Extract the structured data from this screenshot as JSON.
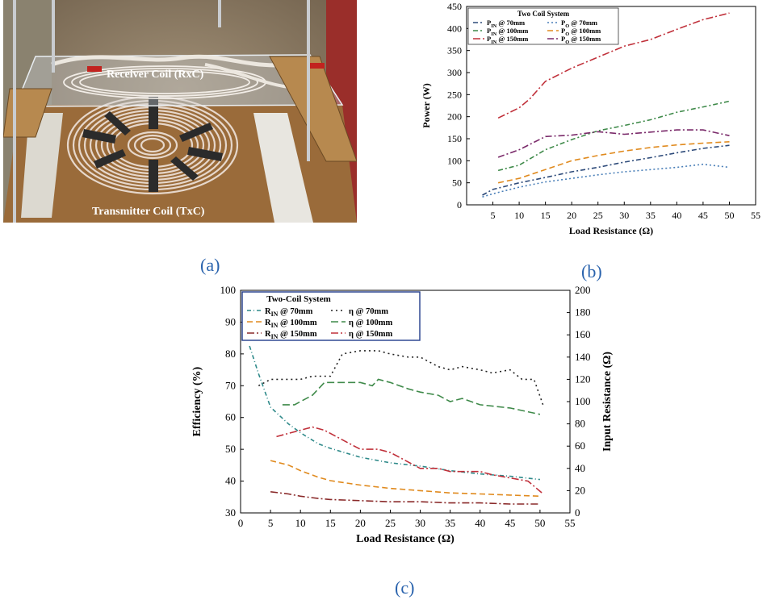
{
  "photo": {
    "receiver_label": "Receiver Coil (RxC)",
    "transmitter_label": "Transmitter Coil (TxC)"
  },
  "labels": {
    "a": "(a)",
    "b": "(b)",
    "c": "(c)"
  },
  "chart_data": [
    {
      "type": "line",
      "xlabel": "Load Resistance (Ω)",
      "ylabel": "Power (W)",
      "xlim": [
        0,
        55
      ],
      "ylim": [
        0,
        450
      ],
      "xticks": [
        5,
        10,
        15,
        20,
        25,
        30,
        35,
        40,
        45,
        50,
        55
      ],
      "yticks": [
        0,
        50,
        100,
        150,
        200,
        250,
        300,
        350,
        400,
        450
      ],
      "legend_title": "Two Coil System",
      "legend": {
        "sub_in": "IN",
        "sub_o": "O",
        "e1": [
          "P",
          "IN",
          " @ 70mm"
        ],
        "e2": [
          "P",
          "O",
          " @ 70mm"
        ],
        "e3": [
          "P",
          "IN",
          " @ 100mm"
        ],
        "e4": [
          "P",
          "O",
          " @ 100mm"
        ],
        "e5": [
          "P",
          "IN",
          " @ 150mm"
        ],
        "e6": [
          "P",
          "O",
          " @ 150mm"
        ]
      },
      "legend_placement": "top-left",
      "grid": false,
      "series": [
        {
          "name": "PIN @ 70mm",
          "color": "#2e4b7a",
          "dash": "6 3 2 3",
          "x": [
            3,
            5,
            10,
            15,
            20,
            25,
            30,
            35,
            40,
            45,
            50
          ],
          "y": [
            22,
            35,
            50,
            62,
            75,
            85,
            97,
            107,
            118,
            128,
            135
          ]
        },
        {
          "name": "PO @ 70mm",
          "color": "#4a7fb8",
          "dash": "2 3",
          "x": [
            3,
            5,
            10,
            15,
            20,
            25,
            30,
            35,
            40,
            45,
            50
          ],
          "y": [
            18,
            25,
            40,
            52,
            60,
            68,
            75,
            80,
            85,
            92,
            85
          ]
        },
        {
          "name": "PIN @ 100mm",
          "color": "#3f8a4a",
          "dash": "6 3 2 3",
          "x": [
            6,
            10,
            15,
            20,
            25,
            30,
            35,
            40,
            45,
            50
          ],
          "y": [
            78,
            90,
            125,
            148,
            168,
            180,
            193,
            210,
            222,
            235
          ]
        },
        {
          "name": "PO @ 100mm",
          "color": "#e08a1e",
          "dash": "7 4",
          "x": [
            6,
            10,
            15,
            20,
            25,
            30,
            35,
            40,
            45,
            50
          ],
          "y": [
            50,
            60,
            80,
            100,
            112,
            122,
            130,
            136,
            140,
            143
          ]
        },
        {
          "name": "PIN @ 150mm",
          "color": "#c0303a",
          "dash": "9 3 2 3",
          "x": [
            6,
            10,
            12,
            15,
            20,
            25,
            30,
            35,
            40,
            45,
            50
          ],
          "y": [
            197,
            220,
            240,
            280,
            310,
            335,
            360,
            375,
            398,
            420,
            435
          ]
        },
        {
          "name": "PO @ 150mm",
          "color": "#7a2a6a",
          "dash": "8 3 2 3",
          "x": [
            6,
            10,
            15,
            20,
            25,
            30,
            35,
            40,
            45,
            50
          ],
          "y": [
            108,
            125,
            155,
            158,
            166,
            160,
            165,
            170,
            170,
            157
          ]
        }
      ]
    },
    {
      "type": "line",
      "xlabel": "Load Resistance (Ω)",
      "ylabel": "Efficiency (%)",
      "y2label": "Input Resistance (Ω)",
      "xlim": [
        0,
        55
      ],
      "ylim": [
        30,
        100
      ],
      "y2lim": [
        0,
        200
      ],
      "xticks": [
        0,
        5,
        10,
        15,
        20,
        25,
        30,
        35,
        40,
        45,
        50,
        55
      ],
      "yticks": [
        30,
        40,
        50,
        60,
        70,
        80,
        90,
        100
      ],
      "y2ticks": [
        0,
        20,
        40,
        60,
        80,
        100,
        120,
        140,
        160,
        180,
        200
      ],
      "legend_title": "Two-Coil System",
      "legend": {
        "e1": [
          "R",
          "IN",
          " @ 70mm"
        ],
        "e2": [
          "η @ 70mm"
        ],
        "e3": [
          "R",
          "IN",
          " @ 100mm"
        ],
        "e4": [
          "η @ 100mm"
        ],
        "e5": [
          "R",
          "IN",
          " @ 150mm"
        ],
        "e6": [
          "η @ 150mm"
        ]
      },
      "legend_placement": "top-left",
      "grid": false,
      "series": [
        {
          "name": "RIN @ 70mm",
          "axis": "y2",
          "color": "#2f8a8a",
          "dash": "5 3 1 3",
          "x": [
            1.5,
            3,
            5,
            8,
            10,
            13,
            15,
            20,
            25,
            30,
            35,
            40,
            45,
            50
          ],
          "y": [
            150,
            125,
            95,
            80,
            72,
            62,
            58,
            50,
            45,
            42,
            38,
            35,
            33,
            30
          ]
        },
        {
          "name": "η @ 70mm",
          "axis": "y",
          "color": "#222222",
          "dash": "2 4",
          "x": [
            3,
            5,
            8,
            10,
            12,
            15,
            17,
            20,
            23,
            25,
            28,
            30,
            33,
            35,
            37,
            40,
            42,
            45,
            47,
            49,
            50.5
          ],
          "y": [
            70,
            72,
            72,
            72,
            73,
            73,
            80,
            81,
            81,
            80,
            79,
            79,
            76,
            75,
            76,
            75,
            74,
            75,
            72,
            72,
            64
          ]
        },
        {
          "name": "RIN @ 100mm",
          "axis": "y2",
          "color": "#e08a1e",
          "dash": "7 4",
          "x": [
            5,
            8,
            10,
            13,
            15,
            20,
            25,
            30,
            35,
            40,
            45,
            50
          ],
          "y": [
            47,
            43,
            38,
            32,
            29,
            25,
            22,
            20,
            18,
            17,
            16,
            15
          ]
        },
        {
          "name": "η @ 100mm",
          "axis": "y",
          "color": "#3f8a4a",
          "dash": "9 4",
          "x": [
            7,
            9,
            12,
            14,
            16,
            18,
            20,
            22,
            23,
            25,
            28,
            30,
            33,
            35,
            37,
            40,
            45,
            50
          ],
          "y": [
            64,
            64,
            67,
            71,
            71,
            71,
            71,
            70,
            72,
            71,
            69,
            68,
            67,
            65,
            66,
            64,
            63,
            61
          ]
        },
        {
          "name": "RIN @ 150mm",
          "axis": "y2",
          "color": "#8a2a2a",
          "dash": "9 3 2 3",
          "x": [
            5,
            8,
            10,
            13,
            15,
            20,
            25,
            30,
            35,
            40,
            45,
            50
          ],
          "y": [
            19,
            17,
            15,
            13,
            12,
            11,
            10,
            10,
            9,
            9,
            8,
            8
          ]
        },
        {
          "name": "η @ 150mm",
          "axis": "y",
          "color": "#c0303a",
          "dash": "9 3 2 3",
          "x": [
            6,
            8,
            10,
            12,
            14,
            16,
            18,
            20,
            23,
            25,
            28,
            30,
            33,
            35,
            38,
            40,
            42,
            45,
            48,
            50.5
          ],
          "y": [
            54,
            55,
            56,
            57,
            56,
            54,
            52,
            50,
            50,
            49,
            46,
            44,
            44,
            43,
            43,
            43,
            42,
            41,
            40,
            36
          ]
        }
      ]
    }
  ]
}
